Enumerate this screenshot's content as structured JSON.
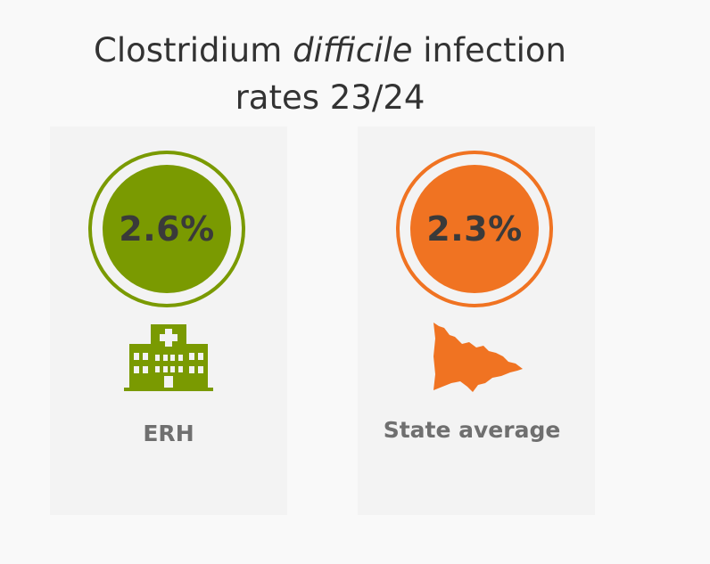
{
  "title": {
    "part1": "Clostridium ",
    "italic": "difficile",
    "part2": " infection",
    "line2": "rates 23/24"
  },
  "cards": [
    {
      "value": "2.6%",
      "label": "ERH",
      "icon": "hospital-icon",
      "color": "#7a9a01"
    },
    {
      "value": "2.3%",
      "label": "State average",
      "icon": "victoria-map-icon",
      "color": "#f07322"
    }
  ]
}
